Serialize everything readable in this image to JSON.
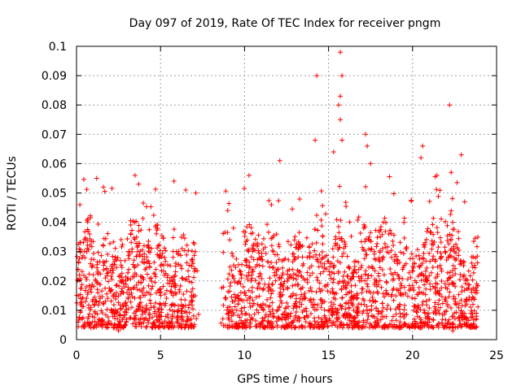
{
  "chart_data": {
    "type": "scatter",
    "title": "Day 097 of 2019, Rate Of TEC Index for receiver pngm",
    "xlabel": "GPS time / hours",
    "ylabel": "ROTI / TECUs",
    "xlim": [
      0,
      25
    ],
    "ylim": [
      0,
      0.1
    ],
    "x_ticks": [
      "0",
      "5",
      "10",
      "15",
      "20",
      "25"
    ],
    "y_ticks": [
      "0",
      "0.01",
      "0.02",
      "0.03",
      "0.04",
      "0.05",
      "0.06",
      "0.07",
      "0.08",
      "0.09",
      "0.1"
    ],
    "grid": true,
    "marker": "+",
    "color": "#ff0000",
    "data_gap_hours": [
      [
        7.3,
        8.6
      ]
    ],
    "notable_points": [
      {
        "x": 14.3,
        "y": 0.09
      },
      {
        "x": 15.7,
        "y": 0.098
      },
      {
        "x": 15.8,
        "y": 0.09
      },
      {
        "x": 15.7,
        "y": 0.083
      },
      {
        "x": 15.6,
        "y": 0.08
      },
      {
        "x": 22.2,
        "y": 0.08
      },
      {
        "x": 15.7,
        "y": 0.075
      },
      {
        "x": 17.2,
        "y": 0.07
      },
      {
        "x": 14.2,
        "y": 0.068
      },
      {
        "x": 15.8,
        "y": 0.068
      },
      {
        "x": 17.3,
        "y": 0.066
      },
      {
        "x": 20.6,
        "y": 0.066
      },
      {
        "x": 15.3,
        "y": 0.064
      },
      {
        "x": 22.9,
        "y": 0.063
      },
      {
        "x": 12.1,
        "y": 0.061
      },
      {
        "x": 20.5,
        "y": 0.062
      },
      {
        "x": 17.5,
        "y": 0.06
      },
      {
        "x": 22.3,
        "y": 0.057
      },
      {
        "x": 1.2,
        "y": 0.055
      },
      {
        "x": 5.8,
        "y": 0.054
      },
      {
        "x": 3.7,
        "y": 0.053
      },
      {
        "x": 1.6,
        "y": 0.052
      },
      {
        "x": 6.5,
        "y": 0.051
      },
      {
        "x": 7.1,
        "y": 0.05
      },
      {
        "x": 11.6,
        "y": 0.046
      },
      {
        "x": 0.2,
        "y": 0.046
      },
      {
        "x": 23.1,
        "y": 0.047
      },
      {
        "x": 9.0,
        "y": 0.044
      },
      {
        "x": 2.5,
        "y": 0.003
      },
      {
        "x": 22.4,
        "y": 0.003
      },
      {
        "x": 0.1,
        "y": 0.006
      },
      {
        "x": 23.8,
        "y": 0.008
      }
    ]
  }
}
